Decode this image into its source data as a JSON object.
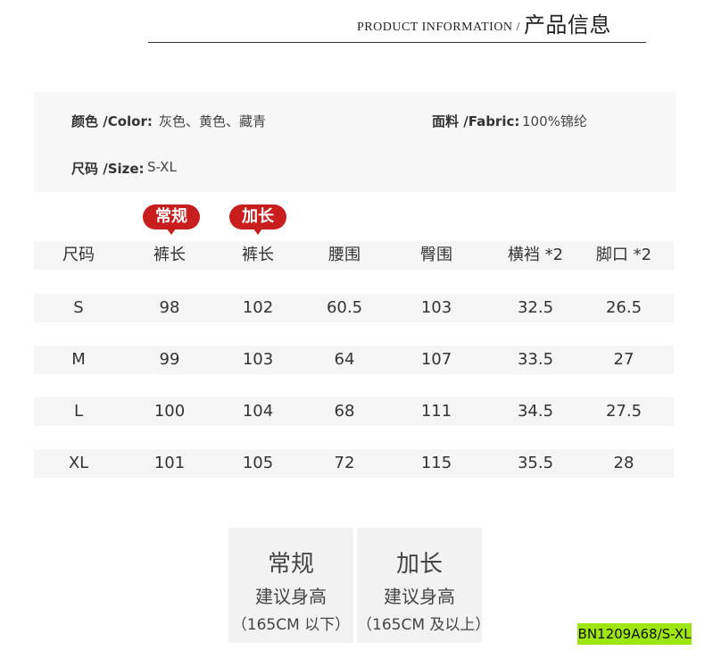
{
  "header": {
    "title_en": "PRODUCT INFORMATION /",
    "title_cn": "产品信息"
  },
  "info": {
    "color_label": "颜色 /Color:",
    "color_value": "灰色、黄色、藏青",
    "fabric_label": "面料 /Fabric:",
    "fabric_value": "100%锦纶",
    "size_label": "尺码 /Size:",
    "size_value": "S-XL"
  },
  "badges": [
    "常规",
    "加长"
  ],
  "table": {
    "headers": [
      "尺码",
      "裤长",
      "裤长",
      "腰围",
      "臀围",
      "横裆 *2",
      "脚口 *2"
    ],
    "rows": [
      [
        "S",
        "98",
        "102",
        "60.5",
        "103",
        "32.5",
        "26.5"
      ],
      [
        "M",
        "99",
        "103",
        "64",
        "107",
        "33.5",
        "27"
      ],
      [
        "L",
        "100",
        "104",
        "68",
        "111",
        "34.5",
        "27.5"
      ],
      [
        "XL",
        "101",
        "105",
        "72",
        "115",
        "35.5",
        "28"
      ]
    ]
  },
  "recommend": [
    {
      "name": "常规",
      "label": "建议身高",
      "range": "（165CM 以下）"
    },
    {
      "name": "加长",
      "label": "建议身高",
      "range": "（165CM 及以上）"
    }
  ],
  "sku_tag": "BN1209A68/S-XL",
  "colors": {
    "badge": "#c81e1e",
    "tag": "#9ee60f"
  }
}
